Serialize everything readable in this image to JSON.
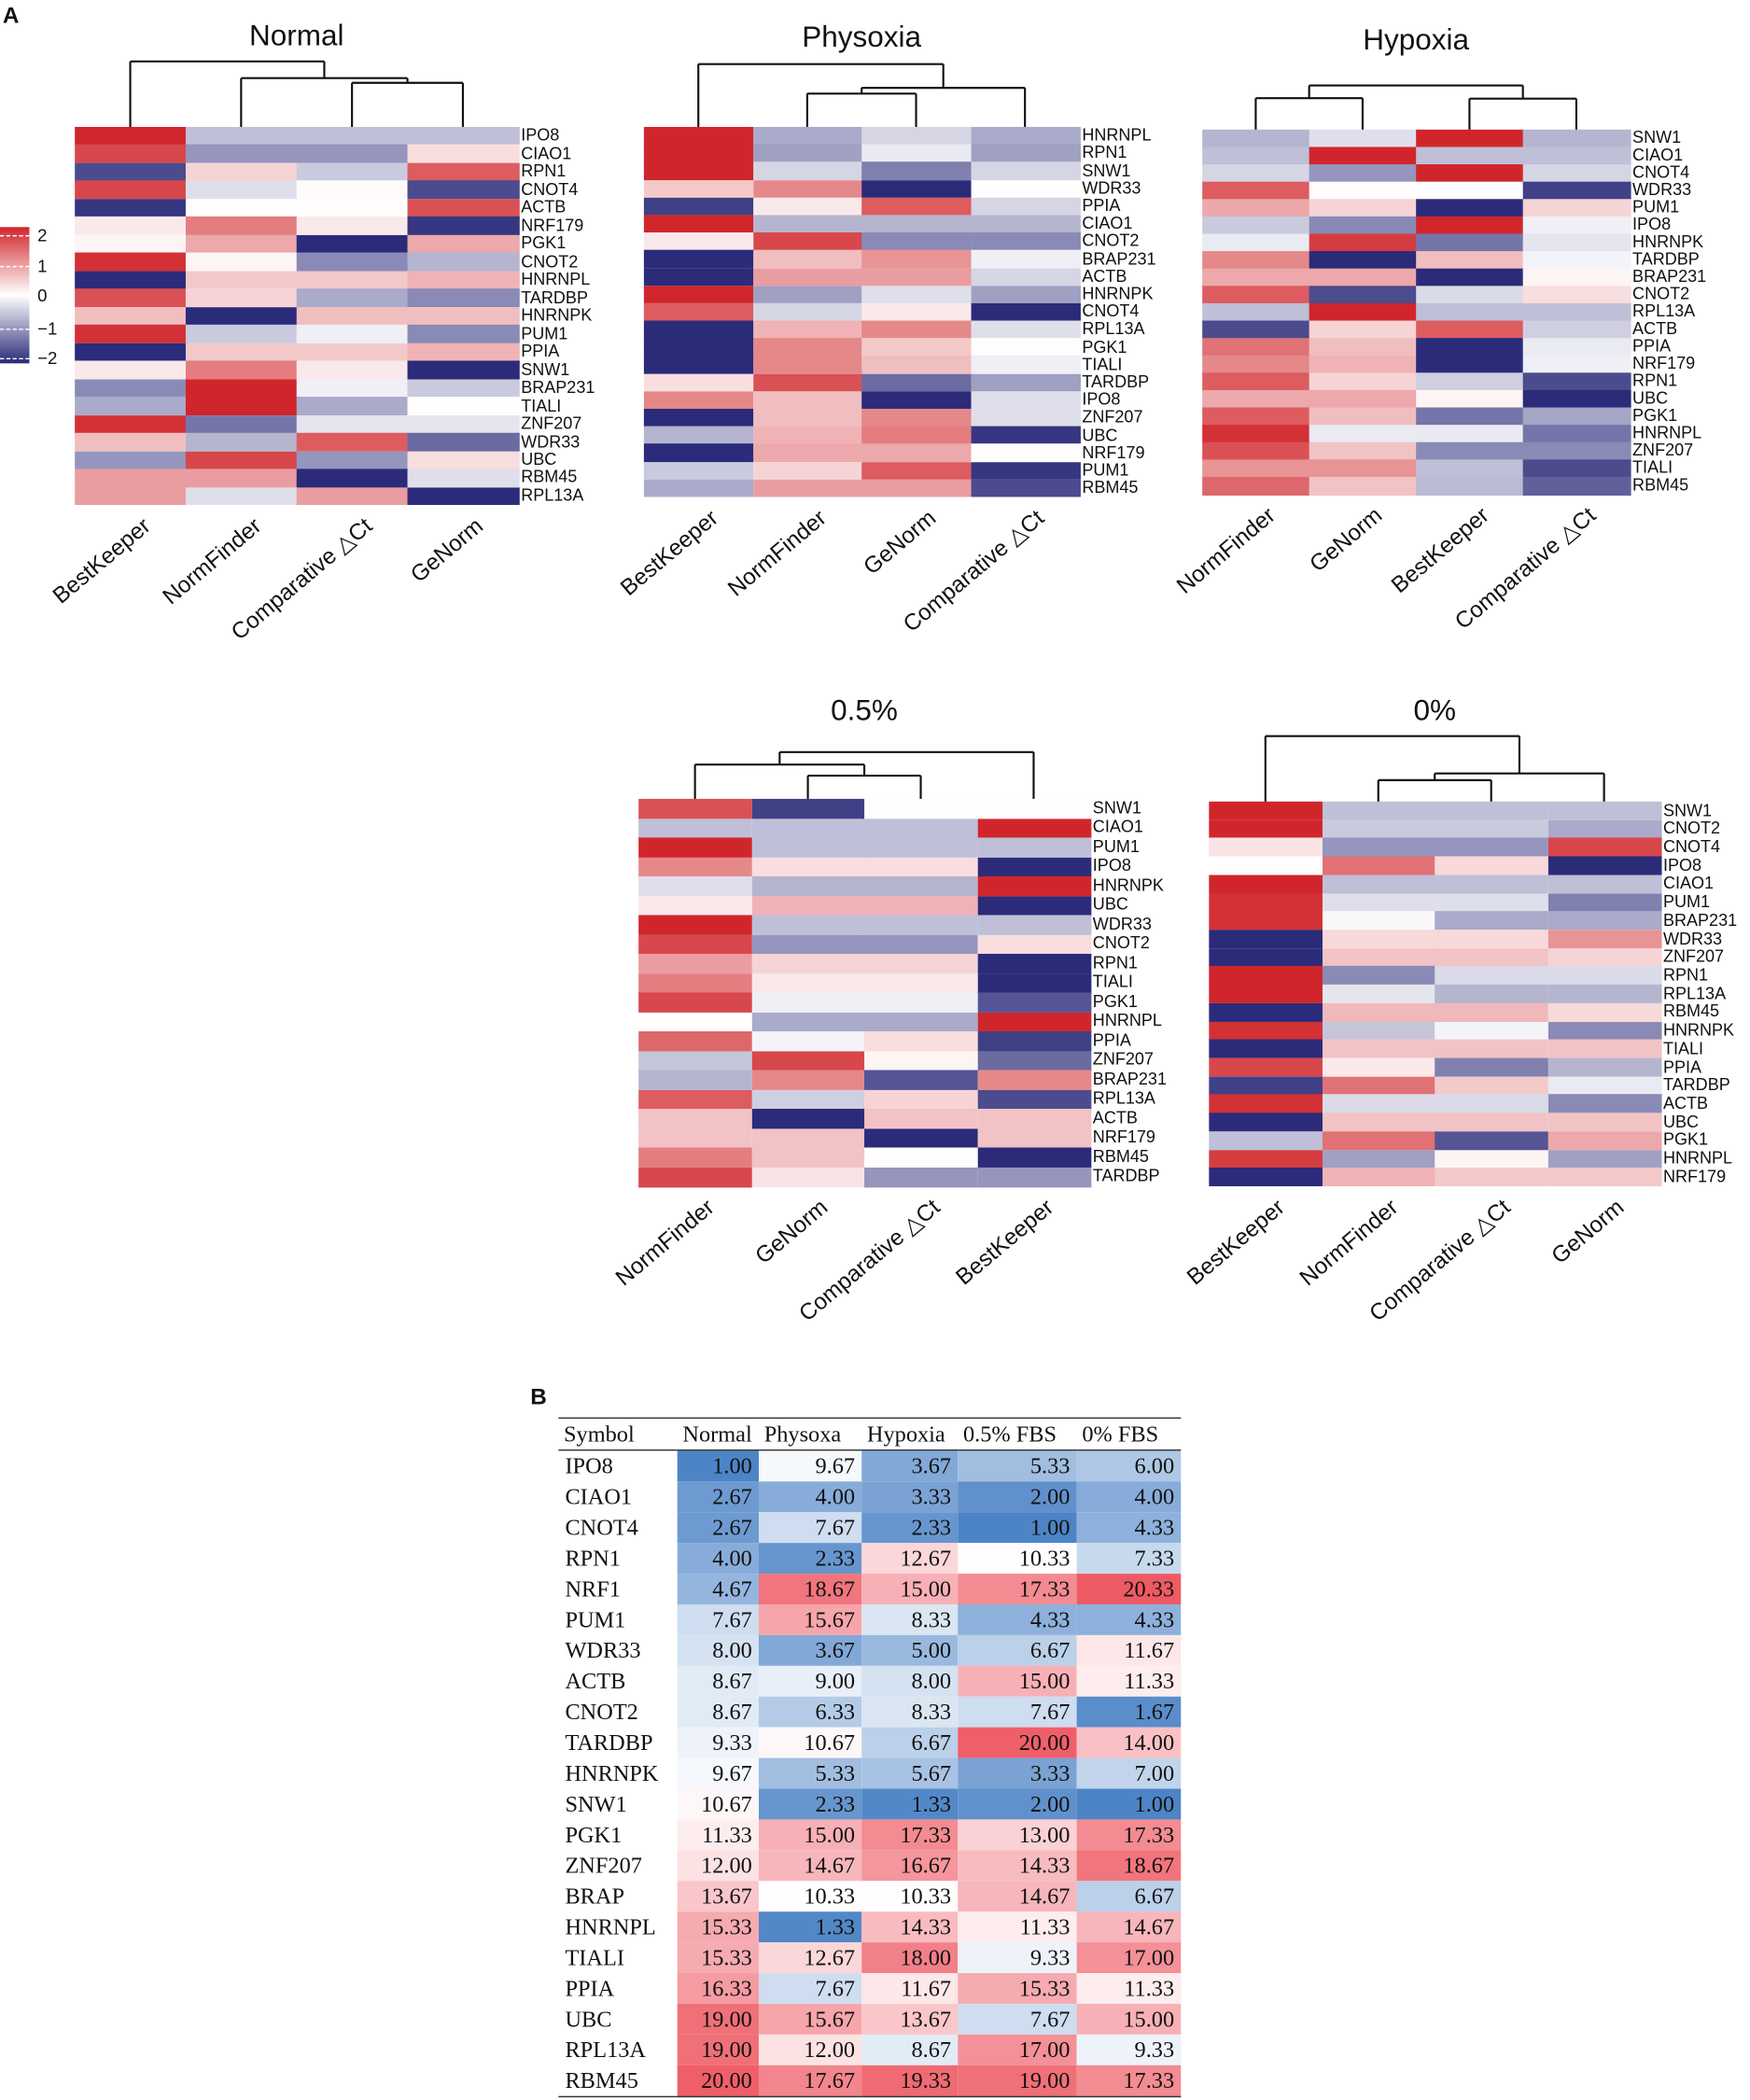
{
  "panel_labels": {
    "a": "A",
    "b": "B"
  },
  "legend": {
    "ticks": [
      "2",
      "1",
      "0",
      "−1",
      "−2"
    ]
  },
  "chart_data": [
    {
      "type": "heatmap",
      "title": "Normal",
      "columns": [
        "BestKeeper",
        "NormFinder",
        "Comparative △Ct",
        "GeNorm"
      ],
      "rows": [
        "IPO8",
        "CIAO1",
        "RPN1",
        "CNOT4",
        "ACTB",
        "NRF179",
        "PGK1",
        "CNOT2",
        "HNRNPL",
        "TARDBP",
        "HNRNPK",
        "PUM1",
        "PPIA",
        "SNW1",
        "BRAP231",
        "TIALI",
        "ZNF207",
        "WDR33",
        "UBC",
        "RBM45",
        "RPL13A"
      ],
      "values": [
        [
          2,
          -0.6,
          -0.6,
          -0.6
        ],
        [
          1.7,
          -1,
          -1,
          0.3
        ],
        [
          -1.7,
          0.4,
          -0.5,
          1.5
        ],
        [
          1.7,
          -0.3,
          0.05,
          -1.7
        ],
        [
          -1.9,
          0.02,
          0.02,
          1.6
        ],
        [
          0.2,
          1.2,
          0.2,
          -1.9
        ],
        [
          0.1,
          0.8,
          -2,
          0.8
        ],
        [
          1.9,
          0.1,
          -1.1,
          -0.7
        ],
        [
          -2,
          0.5,
          0.5,
          0.7
        ],
        [
          1.6,
          0.4,
          -0.8,
          -1.1
        ],
        [
          0.6,
          -2,
          0.6,
          0.6
        ],
        [
          1.9,
          -0.5,
          -0.15,
          -1.1
        ],
        [
          -2,
          0.5,
          0.5,
          0.7
        ],
        [
          0.2,
          1.2,
          0.2,
          -2
        ],
        [
          -1.1,
          2,
          -0.15,
          -0.5
        ],
        [
          -0.8,
          2,
          -0.8,
          0.02
        ],
        [
          1.9,
          -1.3,
          -0.25,
          -0.25
        ],
        [
          0.6,
          -0.7,
          1.5,
          -1.4
        ],
        [
          -1,
          1.7,
          -1,
          0.3
        ],
        [
          0.9,
          0.9,
          -2,
          -0.3
        ],
        [
          0.9,
          -0.3,
          0.9,
          -2
        ]
      ],
      "color_range": [
        -2,
        2
      ]
    },
    {
      "type": "heatmap",
      "title": "Physoxia",
      "columns": [
        "BestKeeper",
        "NormFinder",
        "GeNorm",
        "Comparative △Ct"
      ],
      "rows": [
        "HNRNPL",
        "RPN1",
        "SNW1",
        "WDR33",
        "PPIA",
        "CIAO1",
        "CNOT2",
        "BRAP231",
        "ACTB",
        "HNRNPK",
        "CNOT4",
        "RPL13A",
        "PGK1",
        "TIALI",
        "TARDBP",
        "IPO8",
        "ZNF207",
        "UBC",
        "NRF179",
        "PUM1",
        "RBM45"
      ],
      "values": [
        [
          2,
          -0.8,
          -0.4,
          -0.8
        ],
        [
          2,
          -0.9,
          -0.2,
          -0.9
        ],
        [
          2,
          -0.4,
          -1.2,
          -0.4
        ],
        [
          0.5,
          1.1,
          -2,
          0.02
        ],
        [
          -1.8,
          0.2,
          1.5,
          -0.4
        ],
        [
          2,
          -0.7,
          -0.7,
          -0.7
        ],
        [
          0.2,
          1.7,
          -1.1,
          -1.1
        ],
        [
          -2,
          0.6,
          1,
          -0.15
        ],
        [
          -2,
          0.9,
          0.9,
          -0.4
        ],
        [
          2,
          -0.9,
          -0.3,
          -0.9
        ],
        [
          1.5,
          -0.4,
          0.2,
          -2
        ],
        [
          -2,
          0.7,
          1.1,
          -0.3
        ],
        [
          -2,
          1.1,
          0.5,
          0.03
        ],
        [
          -2,
          1.1,
          0.6,
          -0.15
        ],
        [
          0.3,
          1.6,
          -1.4,
          -0.9
        ],
        [
          1.1,
          0.6,
          -2,
          -0.3
        ],
        [
          -2,
          0.6,
          1.1,
          -0.3
        ],
        [
          -0.7,
          0.7,
          1.2,
          -1.9
        ],
        [
          -2,
          0.8,
          0.8,
          0.03
        ],
        [
          -0.5,
          0.4,
          1.5,
          -1.9
        ],
        [
          -0.8,
          0.9,
          0.9,
          -1.7
        ]
      ],
      "color_range": [
        -2,
        2
      ]
    },
    {
      "type": "heatmap",
      "title": "Hypoxia",
      "columns": [
        "NormFinder",
        "GeNorm",
        "BestKeeper",
        "Comparative △Ct"
      ],
      "rows": [
        "SNW1",
        "CIAO1",
        "CNOT4",
        "WDR33",
        "PUM1",
        "IPO8",
        "HNRNPK",
        "TARDBP",
        "BRAP231",
        "CNOT2",
        "RPL13A",
        "ACTB",
        "PPIA",
        "NRF179",
        "RPN1",
        "UBC",
        "PGK1",
        "HNRNPL",
        "ZNF207",
        "TIALI",
        "RBM45"
      ],
      "values": [
        [
          -0.7,
          -0.3,
          2,
          -0.7
        ],
        [
          -0.6,
          2,
          -0.6,
          -0.6
        ],
        [
          -0.4,
          -1,
          2,
          -0.4
        ],
        [
          1.5,
          0.02,
          0.02,
          -1.8
        ],
        [
          0.8,
          0.4,
          -2,
          0.4
        ],
        [
          -0.5,
          -1.1,
          2,
          -0.15
        ],
        [
          -0.2,
          1.8,
          -1.3,
          -0.25
        ],
        [
          1.1,
          -2,
          0.6,
          -0.1
        ],
        [
          0.8,
          0.8,
          -2,
          0.1
        ],
        [
          1.5,
          -1.7,
          -0.35,
          0.3
        ],
        [
          -0.6,
          2,
          -0.6,
          -0.6
        ],
        [
          -1.7,
          0.4,
          1.5,
          -0.45
        ],
        [
          1.3,
          0.6,
          -2,
          -0.2
        ],
        [
          1.1,
          0.7,
          -2,
          -0.15
        ],
        [
          1.5,
          0.4,
          -0.45,
          -1.7
        ],
        [
          0.8,
          0.8,
          0.1,
          -2
        ],
        [
          1.5,
          0.6,
          -1.3,
          -0.85
        ],
        [
          1.9,
          -0.2,
          -0.2,
          -1.3
        ],
        [
          1.6,
          0.55,
          -1.1,
          -1.1
        ],
        [
          1,
          1,
          -0.6,
          -1.7
        ],
        [
          1.4,
          0.55,
          -0.65,
          -1.5
        ]
      ],
      "color_range": [
        -2,
        2
      ]
    },
    {
      "type": "heatmap",
      "title": "0.5%",
      "columns": [
        "NormFinder",
        "GeNorm",
        "Comparative △Ct",
        "BestKeeper"
      ],
      "rows": [
        "SNW1",
        "CIAO1",
        "PUM1",
        "IPO8",
        "HNRNPK",
        "UBC",
        "WDR33",
        "CNOT2",
        "RPN1",
        "TIALI",
        "PGK1",
        "HNRNPL",
        "PPIA",
        "ZNF207",
        "BRAP231",
        "RPL13A",
        "ACTB",
        "NRF179",
        "RBM45",
        "TARDBP"
      ],
      "values": [
        [
          1.6,
          -1.8,
          0.02,
          0.02
        ],
        [
          -0.6,
          -0.6,
          -0.6,
          2
        ],
        [
          2,
          -0.6,
          -0.6,
          -0.6
        ],
        [
          1.1,
          0.3,
          0.3,
          -2
        ],
        [
          -0.3,
          -0.7,
          -0.7,
          2
        ],
        [
          0.2,
          0.7,
          0.7,
          -2
        ],
        [
          2,
          -0.6,
          -0.6,
          -0.6
        ],
        [
          1.7,
          -1,
          -1,
          0.3
        ],
        [
          0.9,
          0.4,
          0.4,
          -2
        ],
        [
          1.2,
          0.2,
          0.2,
          -2
        ],
        [
          1.7,
          -0.15,
          -0.15,
          -1.6
        ],
        [
          0.02,
          -0.8,
          -0.8,
          2
        ],
        [
          1.4,
          -0.1,
          0.3,
          -1.8
        ],
        [
          -0.55,
          1.7,
          0.1,
          -1.4
        ],
        [
          -0.7,
          1.1,
          -1.6,
          1.1
        ],
        [
          1.5,
          -0.45,
          0.4,
          -1.7
        ],
        [
          0.55,
          -2,
          0.55,
          0.55
        ],
        [
          0.55,
          0.55,
          -2,
          0.55
        ],
        [
          1.2,
          0.55,
          0.02,
          -2
        ],
        [
          1.7,
          0.25,
          -1,
          -1
        ]
      ],
      "color_range": [
        -2,
        2
      ]
    },
    {
      "type": "heatmap",
      "title": "0%",
      "columns": [
        "BestKeeper",
        "NormFinder",
        "Comparative △Ct",
        "GeNorm"
      ],
      "rows": [
        "SNW1",
        "CNOT2",
        "CNOT4",
        "IPO8",
        "CIAO1",
        "PUM1",
        "BRAP231",
        "WDR33",
        "ZNF207",
        "RPN1",
        "RPL13A",
        "RBM45",
        "HNRNPK",
        "TIALI",
        "PPIA",
        "TARDBP",
        "ACTB",
        "UBC",
        "PGK1",
        "HNRNPL",
        "NRF179"
      ],
      "values": [
        [
          2,
          -0.6,
          -0.6,
          -0.6
        ],
        [
          2,
          -0.5,
          -0.5,
          -0.8
        ],
        [
          0.25,
          -1,
          -1,
          1.7
        ],
        [
          0.02,
          1.3,
          0.35,
          -2
        ],
        [
          2,
          -0.6,
          -0.6,
          -0.6
        ],
        [
          1.9,
          -0.3,
          -0.3,
          -1.2
        ],
        [
          1.9,
          -0.07,
          -0.8,
          -0.8
        ],
        [
          -2,
          0.35,
          0.35,
          1
        ],
        [
          -2,
          0.55,
          0.55,
          0.4
        ],
        [
          2,
          -1.1,
          -0.35,
          -0.35
        ],
        [
          2,
          -0.25,
          -0.7,
          -0.7
        ],
        [
          -2,
          0.65,
          0.65,
          0.35
        ],
        [
          1.9,
          -0.55,
          -0.1,
          -1.1
        ],
        [
          -2,
          0.55,
          0.55,
          0.55
        ],
        [
          1.7,
          0.2,
          -1.2,
          -0.7
        ],
        [
          -1.8,
          1.3,
          0.5,
          -0.2
        ],
        [
          1.9,
          -0.35,
          -0.35,
          -1.1
        ],
        [
          -2,
          0.55,
          0.55,
          0.55
        ],
        [
          -0.6,
          1.3,
          -1.6,
          0.8
        ],
        [
          1.8,
          -0.9,
          0.1,
          -0.9
        ],
        [
          -2,
          0.7,
          0.5,
          0.5
        ]
      ],
      "color_range": [
        -2,
        2
      ]
    },
    {
      "type": "table",
      "headers": [
        "Symbol",
        "Normal",
        "Physoxa",
        "Hypoxia",
        "0.5% FBS",
        "0% FBS"
      ],
      "rows": [
        [
          "IPO8",
          "1.00",
          "9.67",
          "3.67",
          "5.33",
          "6.00"
        ],
        [
          "CIAO1",
          "2.67",
          "4.00",
          "3.33",
          "2.00",
          "4.00"
        ],
        [
          "CNOT4",
          "2.67",
          "7.67",
          "2.33",
          "1.00",
          "4.33"
        ],
        [
          "RPN1",
          "4.00",
          "2.33",
          "12.67",
          "10.33",
          "7.33"
        ],
        [
          "NRF1",
          "4.67",
          "18.67",
          "15.00",
          "17.33",
          "20.33"
        ],
        [
          "PUM1",
          "7.67",
          "15.67",
          "8.33",
          "4.33",
          "4.33"
        ],
        [
          "WDR33",
          "8.00",
          "3.67",
          "5.00",
          "6.67",
          "11.67"
        ],
        [
          "ACTB",
          "8.67",
          "9.00",
          "8.00",
          "15.00",
          "11.33"
        ],
        [
          "CNOT2",
          "8.67",
          "6.33",
          "8.33",
          "7.67",
          "1.67"
        ],
        [
          "TARDBP",
          "9.33",
          "10.67",
          "6.67",
          "20.00",
          "14.00"
        ],
        [
          "HNRNPK",
          "9.67",
          "5.33",
          "5.67",
          "3.33",
          "7.00"
        ],
        [
          "SNW1",
          "10.67",
          "2.33",
          "1.33",
          "2.00",
          "1.00"
        ],
        [
          "PGK1",
          "11.33",
          "15.00",
          "17.33",
          "13.00",
          "17.33"
        ],
        [
          "ZNF207",
          "12.00",
          "14.67",
          "16.67",
          "14.33",
          "18.67"
        ],
        [
          "BRAP",
          "13.67",
          "10.33",
          "10.33",
          "14.67",
          "6.67"
        ],
        [
          "HNRNPL",
          "15.33",
          "1.33",
          "14.33",
          "11.33",
          "14.67"
        ],
        [
          "TIALI",
          "15.33",
          "12.67",
          "18.00",
          "9.33",
          "17.00"
        ],
        [
          "PPIA",
          "16.33",
          "7.67",
          "11.67",
          "15.33",
          "11.33"
        ],
        [
          "UBC",
          "19.00",
          "15.67",
          "13.67",
          "7.67",
          "15.00"
        ],
        [
          "RPL13A",
          "19.00",
          "12.00",
          "8.67",
          "17.00",
          "9.33"
        ],
        [
          "RBM45",
          "20.00",
          "17.67",
          "19.33",
          "19.00",
          "17.33"
        ]
      ]
    }
  ],
  "colors": {
    "high": "#d0262b",
    "mid": "#ffffff",
    "low": "#2b2b7a",
    "table_low": "#4d84c6",
    "table_high": "#ee5a64"
  }
}
